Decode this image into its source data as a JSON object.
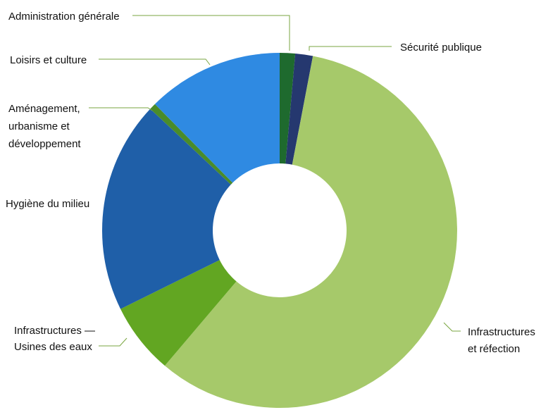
{
  "chart_data": {
    "type": "pie",
    "donut": true,
    "slices": [
      {
        "label": "Administration générale",
        "value": 1.4,
        "color": "#1e6a2e"
      },
      {
        "label": "Sécurité publique",
        "value": 1.6,
        "color": "#25386f"
      },
      {
        "label": "Infrastructures et réfection",
        "value": 58.2,
        "color": "#a6c96a"
      },
      {
        "label": "Infrastructures — Usines des eaux",
        "value": 6.5,
        "color": "#62a622"
      },
      {
        "label": "Hygiène du milieu",
        "value": 19.3,
        "color": "#1f5fa8"
      },
      {
        "label": "Aménagement, urbanisme et développement",
        "value": 0.6,
        "color": "#4a8c2a"
      },
      {
        "label": "Loisirs et culture",
        "value": 12.4,
        "color": "#2f8ae2"
      }
    ]
  },
  "labels": [
    {
      "lines": [
        "Administration générale"
      ]
    },
    {
      "lines": [
        "Sécurité publique"
      ]
    },
    {
      "lines": [
        "Infrastructures",
        "et réfection"
      ]
    },
    {
      "lines": [
        "Infrastructures —",
        "Usines des eaux"
      ]
    },
    {
      "lines": [
        "Hygiène du milieu"
      ]
    },
    {
      "lines": [
        "Aménagement,",
        "urbanisme et",
        "développement"
      ]
    },
    {
      "lines": [
        "Loisirs et culture"
      ]
    }
  ],
  "colors": {
    "leader": "#7aa640",
    "text": "#111111",
    "background": "#ffffff"
  }
}
